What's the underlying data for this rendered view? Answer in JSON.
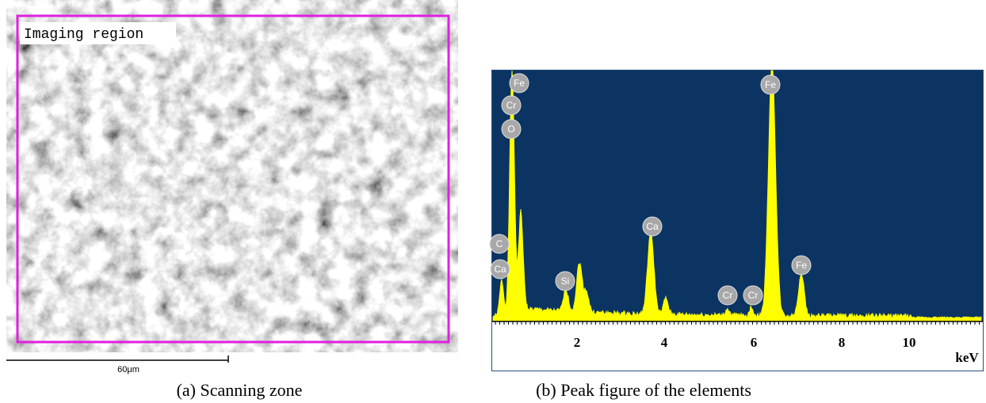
{
  "panel_a": {
    "overlay_label": "Imaging region",
    "scale_bar": "60μm",
    "caption": "(a) Scanning zone"
  },
  "panel_b": {
    "peak_labels": [
      "Fe",
      "Cr",
      "O",
      "C",
      "Ca",
      "Si",
      "Ca",
      "Cr",
      "Cr",
      "Fe",
      "Fe"
    ],
    "x_tick_labels": [
      "2",
      "4",
      "6",
      "8",
      "10"
    ],
    "x_unit": "keV",
    "caption": "(b) Peak figure of the elements"
  }
}
